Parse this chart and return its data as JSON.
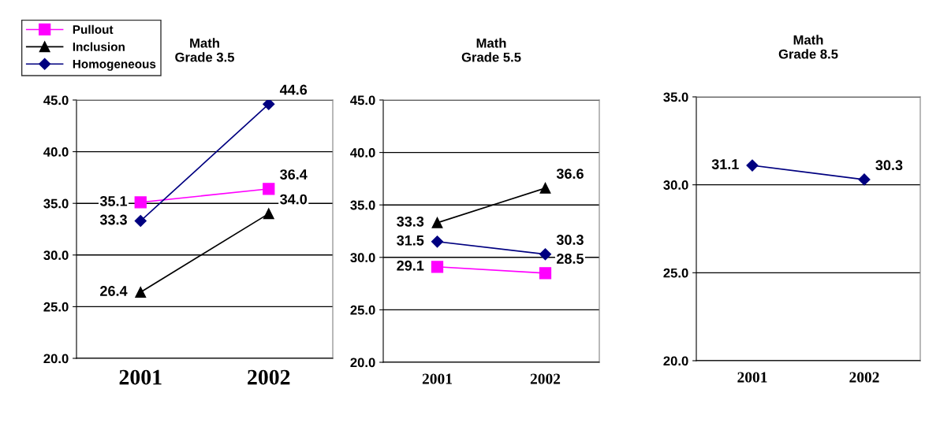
{
  "chart_data": [
    {
      "type": "line",
      "title": "Math\nGrade 3.5",
      "categories": [
        "2001",
        "2002"
      ],
      "ylim": [
        20,
        45
      ],
      "yticks": [
        {
          "value": 20,
          "label": "20.0"
        },
        {
          "value": 25,
          "label": "25.0"
        },
        {
          "value": 30,
          "label": "30.0"
        },
        {
          "value": 35,
          "label": "35.0"
        },
        {
          "value": 40,
          "label": "40.0"
        },
        {
          "value": 45,
          "label": "45.0"
        }
      ],
      "grid": "y",
      "legend": "top left",
      "series": [
        {
          "name": "Pullout",
          "color": "#ff00ff",
          "marker": "square",
          "values": [
            35.1,
            36.4
          ],
          "value_labels": [
            "35.1",
            "36.4"
          ]
        },
        {
          "name": "Inclusion",
          "color": "#000000",
          "marker": "triangle",
          "values": [
            26.4,
            34.0
          ],
          "value_labels": [
            "26.4",
            "34.0"
          ]
        },
        {
          "name": "Homogeneous",
          "color": "#000080",
          "marker": "diamond",
          "values": [
            33.3,
            44.6
          ],
          "value_labels": [
            "33.3",
            "44.6"
          ]
        }
      ]
    },
    {
      "type": "line",
      "title": "Math\nGrade 5.5",
      "categories": [
        "2001",
        "2002"
      ],
      "ylim": [
        20,
        45
      ],
      "yticks": [
        {
          "value": 20,
          "label": "20.0"
        },
        {
          "value": 25,
          "label": "25.0"
        },
        {
          "value": 30,
          "label": "30.0"
        },
        {
          "value": 35,
          "label": "35.0"
        },
        {
          "value": 40,
          "label": "40.0"
        },
        {
          "value": 45,
          "label": "45.0"
        }
      ],
      "grid": "y",
      "series": [
        {
          "color": "#ff00ff",
          "marker": "square",
          "values": [
            29.1,
            28.5
          ],
          "value_labels": [
            "29.1",
            "28.5"
          ]
        },
        {
          "color": "#000000",
          "marker": "triangle",
          "values": [
            33.3,
            36.6
          ],
          "value_labels": [
            "33.3",
            "36.6"
          ]
        },
        {
          "color": "#000080",
          "marker": "diamond",
          "values": [
            31.5,
            30.3
          ],
          "value_labels": [
            "31.5",
            "30.3"
          ]
        }
      ]
    },
    {
      "type": "line",
      "title": "Math\nGrade 8.5",
      "categories": [
        "2001",
        "2002"
      ],
      "ylim": [
        20,
        35
      ],
      "yticks": [
        {
          "value": 20,
          "label": "20.0"
        },
        {
          "value": 25,
          "label": "25.0"
        },
        {
          "value": 30,
          "label": "30.0"
        },
        {
          "value": 35,
          "label": "35.0"
        }
      ],
      "grid": "y",
      "series": [
        {
          "color": "#000080",
          "marker": "diamond",
          "values": [
            31.1,
            30.3
          ],
          "value_labels": [
            "31.1",
            "30.3"
          ]
        }
      ]
    }
  ]
}
